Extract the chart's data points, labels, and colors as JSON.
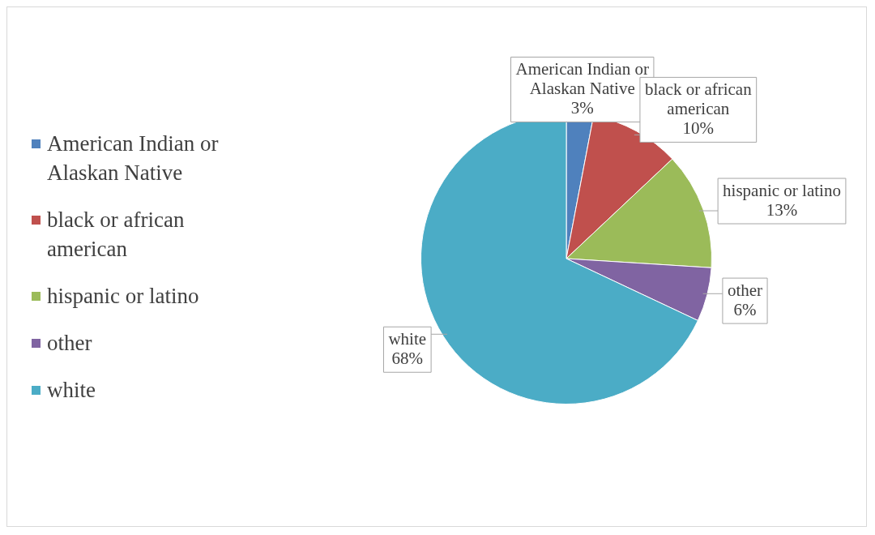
{
  "chart_data": {
    "type": "pie",
    "categories": [
      "American Indian or Alaskan Native",
      "black or african american",
      "hispanic or latino",
      "other",
      "white"
    ],
    "values": [
      3,
      10,
      13,
      6,
      68
    ],
    "colors": [
      "#4f81bd",
      "#c0504d",
      "#9bbb59",
      "#8064a2",
      "#4bacc6"
    ],
    "value_labels": [
      "3%",
      "10%",
      "13%",
      "6%",
      "68%"
    ],
    "legend": "left"
  }
}
